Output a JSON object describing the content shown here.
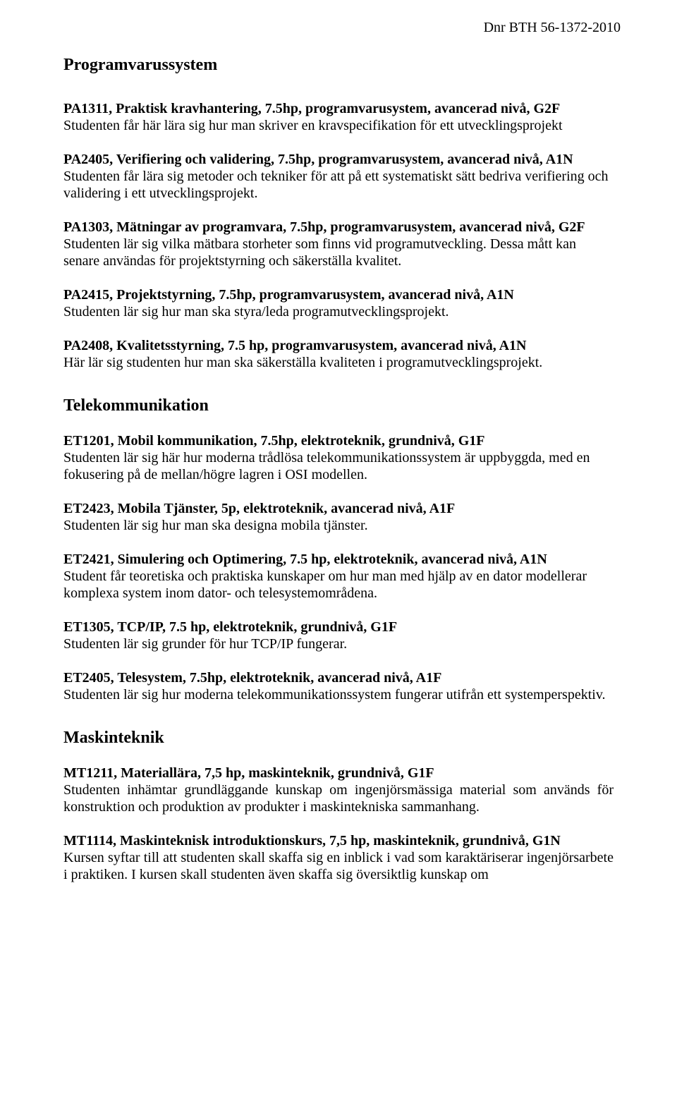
{
  "header": {
    "dnr": "Dnr BTH 56-1372-2010"
  },
  "sections": [
    {
      "title": "Programvarussystem",
      "courses": [
        {
          "title": "PA1311, Praktisk kravhantering, 7.5hp, programvarusystem, avancerad nivå, G2F",
          "desc": "Studenten får här lära sig hur man skriver en kravspecifikation för ett utvecklingsprojekt"
        },
        {
          "title": "PA2405, Verifiering och validering, 7.5hp, programvarusystem, avancerad nivå, A1N",
          "desc": "Studenten får lära sig metoder och tekniker för att på ett systematiskt sätt bedriva verifiering och validering i ett utvecklingsprojekt."
        },
        {
          "title": "PA1303, Mätningar av programvara, 7.5hp, programvarusystem, avancerad nivå, G2F",
          "desc": "Studenten lär sig vilka mätbara storheter som finns vid programutveckling. Dessa mått kan senare användas för projektstyrning och säkerställa kvalitet."
        },
        {
          "title": "PA2415, Projektstyrning, 7.5hp, programvarusystem, avancerad nivå, A1N",
          "desc": "Studenten lär sig hur man ska styra/leda programutvecklingsprojekt."
        },
        {
          "title": "PA2408, Kvalitetsstyrning, 7.5 hp, programvarusystem, avancerad nivå, A1N",
          "desc": "Här lär sig studenten hur man ska säkerställa kvaliteten i programutvecklingsprojekt."
        }
      ]
    },
    {
      "title": "Telekommunikation",
      "courses": [
        {
          "title": "ET1201, Mobil kommunikation, 7.5hp, elektroteknik, grundnivå, G1F",
          "desc": "Studenten lär sig här hur moderna trådlösa telekommunikationssystem är uppbyggda, med en fokusering på de mellan/högre lagren i OSI modellen."
        },
        {
          "title": "ET2423, Mobila Tjänster, 5p, elektroteknik, avancerad nivå, A1F",
          "desc": "Studenten lär sig hur man ska designa mobila tjänster."
        },
        {
          "title": "ET2421, Simulering och Optimering, 7.5 hp, elektroteknik, avancerad nivå, A1N",
          "desc": "Student får teoretiska och praktiska kunskaper om hur man med hjälp av en dator modellerar komplexa system inom dator- och telesystemområdena."
        },
        {
          "title": "ET1305, TCP/IP, 7.5 hp, elektroteknik, grundnivå, G1F",
          "desc": "Studenten lär sig grunder för hur TCP/IP fungerar."
        },
        {
          "title": "ET2405, Telesystem, 7.5hp, elektroteknik, avancerad nivå, A1F",
          "desc": "Studenten lär sig hur moderna telekommunikationssystem fungerar utifrån ett systemperspektiv."
        }
      ]
    },
    {
      "title": "Maskinteknik",
      "justified": true,
      "courses": [
        {
          "title": "MT1211, Materiallära, 7,5 hp, maskinteknik, grundnivå, G1F",
          "desc": "Studenten inhämtar grundläggande kunskap om ingenjörsmässiga material som används för konstruktion och produktion av produkter i maskintekniska sammanhang."
        },
        {
          "title": "MT1114, Maskinteknisk introduktionskurs, 7,5 hp, maskinteknik, grundnivå, G1N",
          "desc": "Kursen syftar till att studenten skall skaffa sig en inblick i vad som karaktäriserar ingenjörsarbete i praktiken. I kursen skall studenten även skaffa sig översiktlig kunskap om"
        }
      ]
    }
  ]
}
